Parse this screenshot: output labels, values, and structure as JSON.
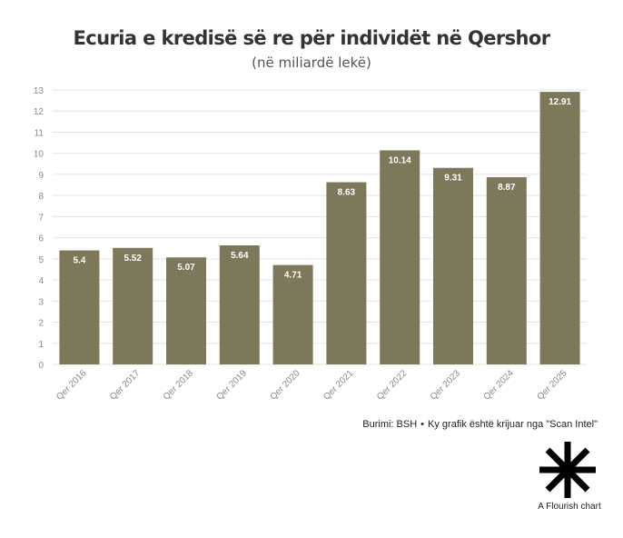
{
  "colors": {
    "bar": "#7e785a",
    "grid": "#e3e3e3",
    "axis_text": "#888888",
    "value_label": "#ffffff"
  },
  "footer": {
    "source": "Burimi: BSH",
    "separator": "•",
    "credit": "Ky grafik është krijuar nga \"Scan Intel\""
  },
  "brand": {
    "icon": "flourish-asterisk-icon",
    "label": "A Flourish chart"
  },
  "chart_data": {
    "type": "bar",
    "title": "Ecuria e kredisë së re për individët në Qershor",
    "subtitle": "(në miliardë lekë)",
    "xlabel": "",
    "ylabel": "",
    "categories": [
      "Qer 2016",
      "Qer 2017",
      "Qer 2018",
      "Qer 2019",
      "Qer 2020",
      "Qer 2021",
      "Qer 2022",
      "Qer 2023",
      "Qer 2024",
      "Qer 2025"
    ],
    "values": [
      5.4,
      5.52,
      5.07,
      5.64,
      4.71,
      8.63,
      10.14,
      9.31,
      8.87,
      12.91
    ],
    "value_labels": [
      "5.4",
      "5.52",
      "5.07",
      "5.64",
      "4.71",
      "8.63",
      "10.14",
      "9.31",
      "8.87",
      "12.91"
    ],
    "ylim": [
      0,
      13
    ],
    "yticks": [
      0,
      1,
      2,
      3,
      4,
      5,
      6,
      7,
      8,
      9,
      10,
      11,
      12,
      13
    ],
    "grid": true,
    "legend": "none"
  }
}
